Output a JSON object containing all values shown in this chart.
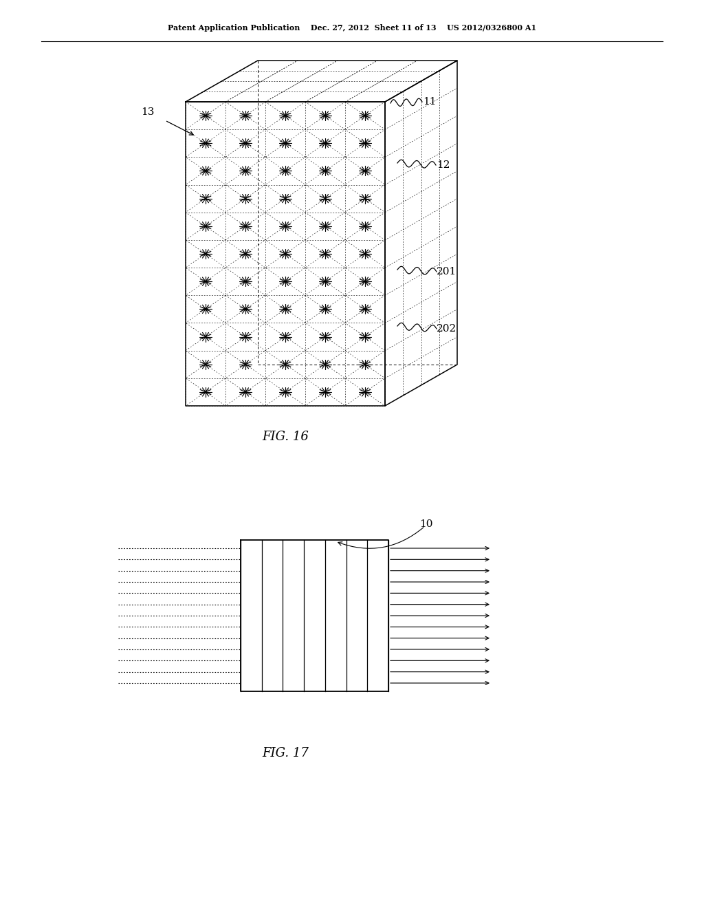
{
  "bg_color": "#ffffff",
  "header_text": "Patent Application Publication    Dec. 27, 2012  Sheet 11 of 13    US 2012/0326800 A1",
  "fig16_label": "FIG. 16",
  "fig17_label": "FIG. 17",
  "text_color": "#000000"
}
